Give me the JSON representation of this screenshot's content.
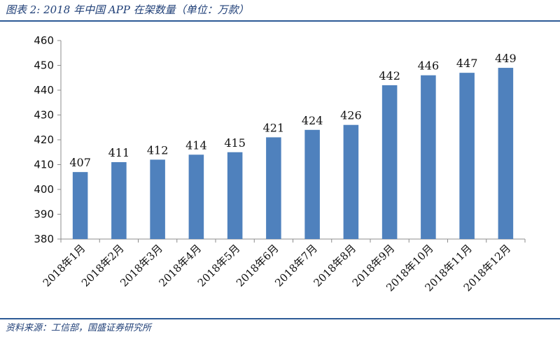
{
  "title": "图表 2:  2018 年中国 APP 在架数量（单位：万款）",
  "source": "资料来源：工信部，国盛证券研究所",
  "colors": {
    "bar": "#4f81bd",
    "axis": "#8c8c8c",
    "rule": "#2d5a96",
    "title": "#1f3f77"
  },
  "chart_data": {
    "type": "bar",
    "title": "",
    "xlabel": "",
    "ylabel": "",
    "ylim": [
      380,
      460
    ],
    "yticks": [
      380,
      390,
      400,
      410,
      420,
      430,
      440,
      450,
      460
    ],
    "grid": false,
    "legend": "none",
    "categories": [
      "2018年1月",
      "2018年2月",
      "2018年3月",
      "2018年4月",
      "2018年5月",
      "2018年6月",
      "2018年7月",
      "2018年8月",
      "2018年9月",
      "2018年10月",
      "2018年11月",
      "2018年12月"
    ],
    "values": [
      407,
      411,
      412,
      414,
      415,
      421,
      424,
      426,
      442,
      446,
      447,
      449
    ],
    "data_labels": true
  }
}
